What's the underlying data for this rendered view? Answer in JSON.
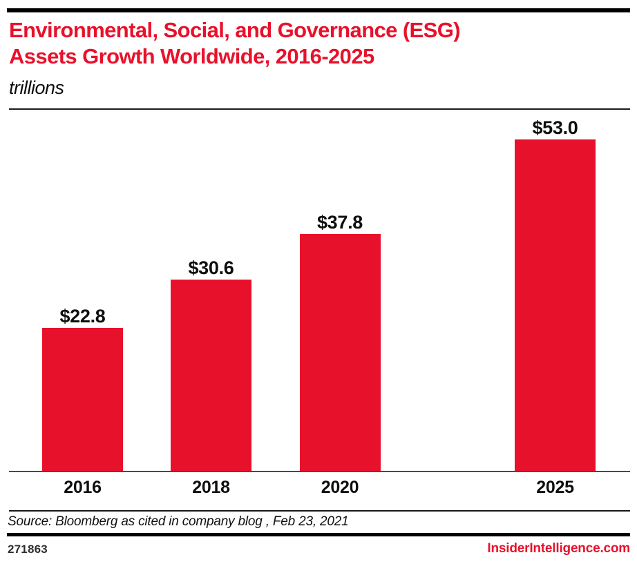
{
  "meta": {
    "background": "#ffffff",
    "accent_red": "#e8112b",
    "text_color": "#0e0e0e"
  },
  "header": {
    "title_line1": "Environmental, Social, and Governance (ESG)",
    "title_line2": "Assets Growth Worldwide, 2016-2025",
    "subtitle": "trillions"
  },
  "chart_data": {
    "type": "bar",
    "title": "Environmental, Social, and Governance (ESG) Assets Growth Worldwide, 2016-2025",
    "units_label": "trillions",
    "categories": [
      "2016",
      "2018",
      "2020",
      "2025"
    ],
    "values": [
      22.8,
      30.6,
      37.8,
      53.0
    ],
    "value_labels": [
      "$22.8",
      "$30.6",
      "$37.8",
      "$53.0"
    ],
    "bar_color": "#e8112b",
    "ylim": [
      0,
      57.8
    ],
    "grid": false,
    "legend": false,
    "xlabel": "",
    "ylabel": ""
  },
  "footer": {
    "source": "Source: Bloomberg as cited in company blog , Feb 23, 2021",
    "chart_id": "271863",
    "brand": "InsiderIntelligence.com"
  }
}
